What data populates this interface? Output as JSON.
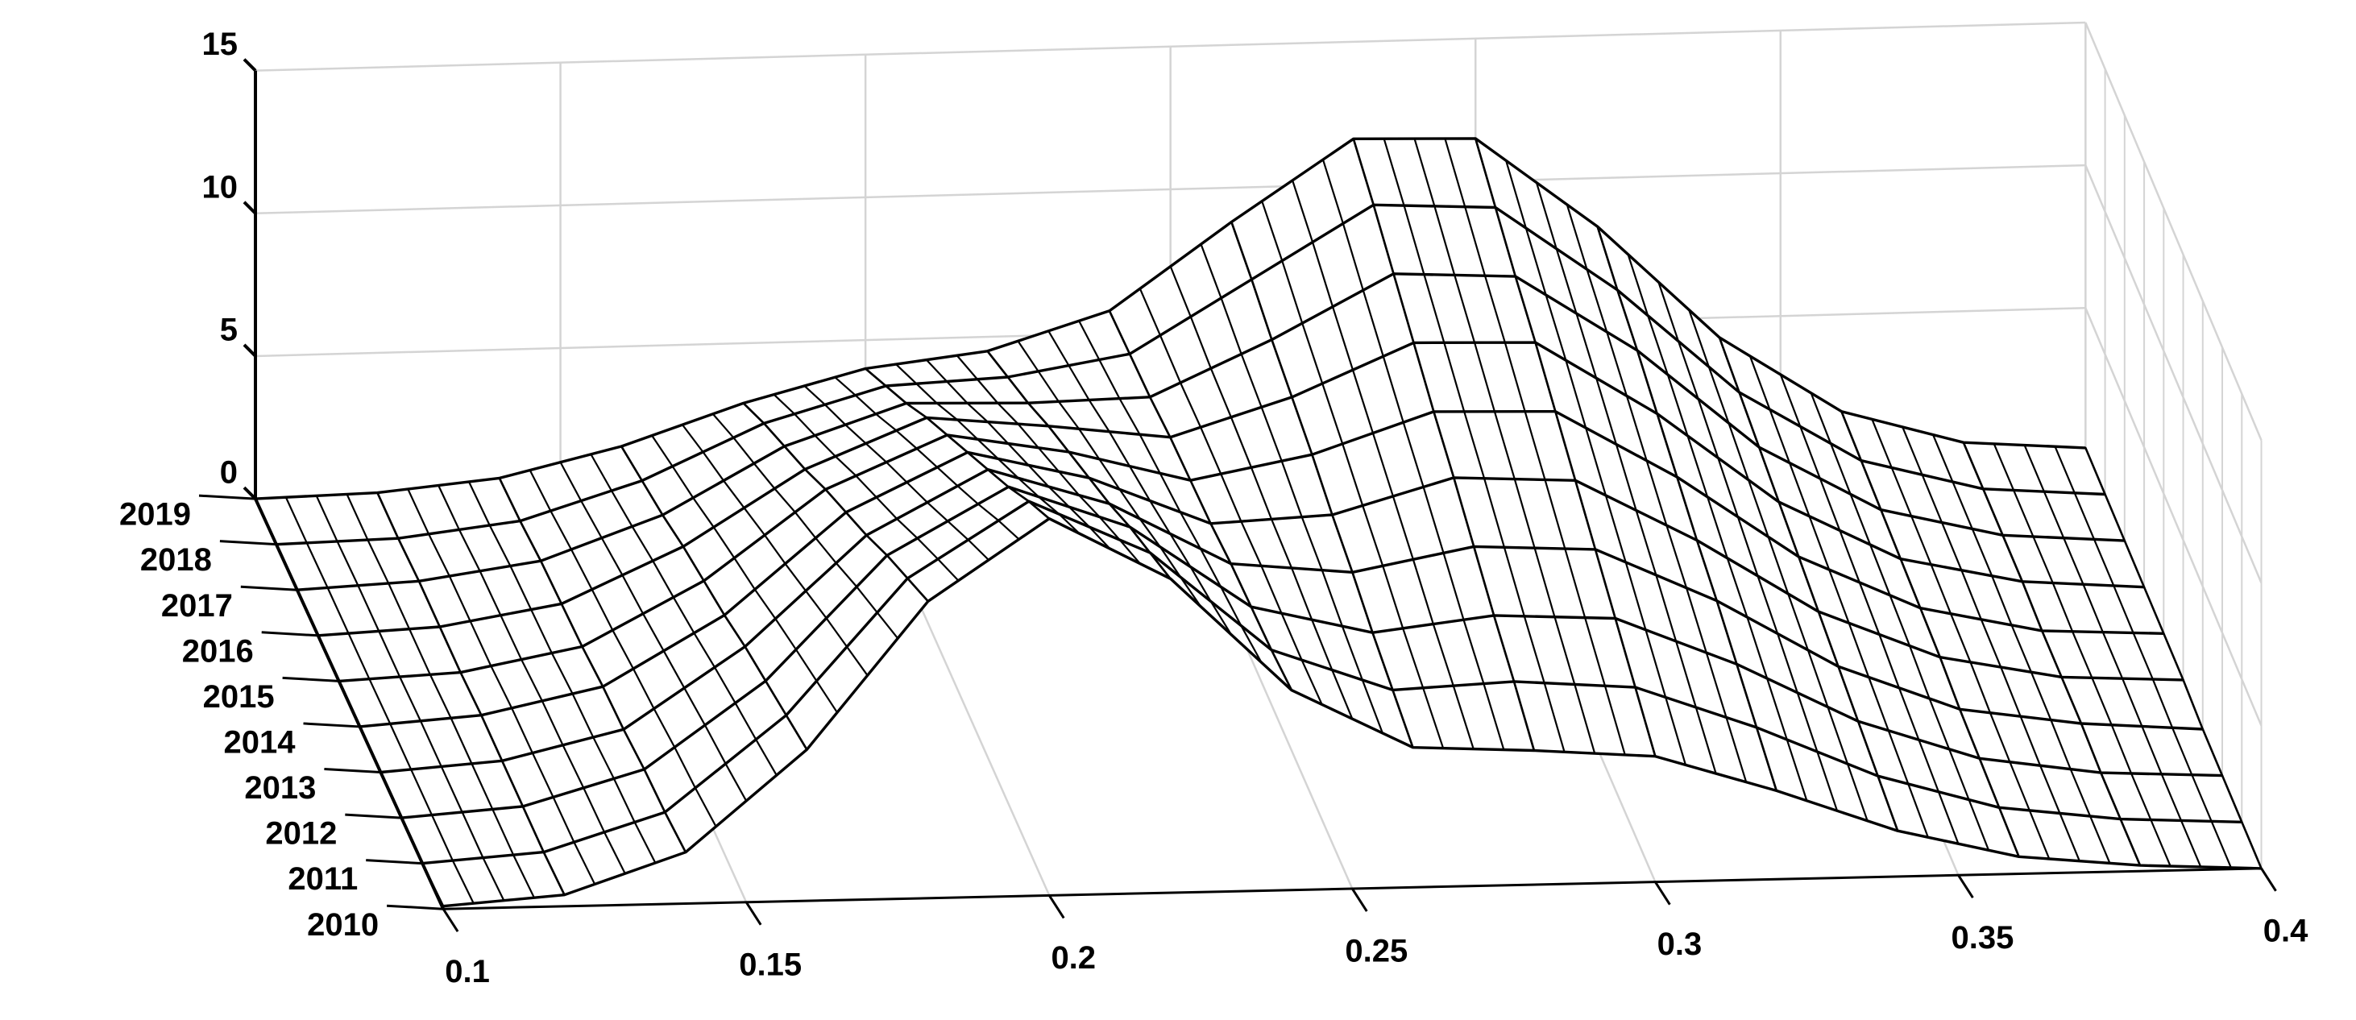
{
  "chart_data": {
    "type": "surface",
    "x": [
      0.1,
      0.12,
      0.14,
      0.16,
      0.18,
      0.2,
      0.22,
      0.24,
      0.26,
      0.28,
      0.3,
      0.32,
      0.34,
      0.36,
      0.38,
      0.4
    ],
    "xlim": [
      0.1,
      0.4
    ],
    "xticks": [
      0.1,
      0.15,
      0.2,
      0.25,
      0.3,
      0.35,
      0.4
    ],
    "zlim": [
      0,
      15
    ],
    "zticks": [
      0,
      5,
      10,
      15
    ],
    "grid": true,
    "color": "#000000",
    "series": [
      {
        "name": "2010",
        "values": [
          0.1,
          0.4,
          1.8,
          5.3,
          10.4,
          13.2,
          11.0,
          7.0,
          4.9,
          4.7,
          4.4,
          3.1,
          1.6,
          0.6,
          0.2,
          0.0
        ]
      },
      {
        "name": "2011",
        "values": [
          0.0,
          0.3,
          1.6,
          4.9,
          9.6,
          12.2,
          10.3,
          6.8,
          5.3,
          5.5,
          5.2,
          3.7,
          1.9,
          0.7,
          0.2,
          0.0
        ]
      },
      {
        "name": "2012",
        "values": [
          0.0,
          0.3,
          1.5,
          4.5,
          8.8,
          11.1,
          9.6,
          6.7,
          5.7,
          6.2,
          6.0,
          4.3,
          2.2,
          0.8,
          0.2,
          0.0
        ]
      },
      {
        "name": "2013",
        "values": [
          0.0,
          0.3,
          1.3,
          4.1,
          7.9,
          10.1,
          8.8,
          6.6,
          6.2,
          7.0,
          6.8,
          4.9,
          2.5,
          0.9,
          0.3,
          0.0
        ]
      },
      {
        "name": "2014",
        "values": [
          0.0,
          0.3,
          1.2,
          3.6,
          7.1,
          9.1,
          8.1,
          6.4,
          6.6,
          7.8,
          7.6,
          5.4,
          2.8,
          1.1,
          0.3,
          0.1
        ]
      },
      {
        "name": "2015",
        "values": [
          0.0,
          0.2,
          1.0,
          3.2,
          6.3,
          8.1,
          7.4,
          6.3,
          7.1,
          8.5,
          8.4,
          6.0,
          3.1,
          1.2,
          0.3,
          0.1
        ]
      },
      {
        "name": "2016",
        "values": [
          0.0,
          0.2,
          0.9,
          2.8,
          5.4,
          7.1,
          6.7,
          6.2,
          7.5,
          9.3,
          9.2,
          6.6,
          3.4,
          1.3,
          0.4,
          0.1
        ]
      },
      {
        "name": "2017",
        "values": [
          0.0,
          0.2,
          0.8,
          2.3,
          4.6,
          6.0,
          5.9,
          6.0,
          7.9,
          10.1,
          9.9,
          7.2,
          3.7,
          1.4,
          0.4,
          0.1
        ]
      },
      {
        "name": "2018",
        "values": [
          0.0,
          0.1,
          0.6,
          1.9,
          3.8,
          5.0,
          5.2,
          5.9,
          8.4,
          10.9,
          10.7,
          7.7,
          4.0,
          1.5,
          0.4,
          0.1
        ]
      },
      {
        "name": "2019",
        "values": [
          0.0,
          0.1,
          0.5,
          1.5,
          2.9,
          4.0,
          4.5,
          5.8,
          8.8,
          11.6,
          11.5,
          8.3,
          4.3,
          1.6,
          0.4,
          0.1
        ]
      }
    ]
  }
}
